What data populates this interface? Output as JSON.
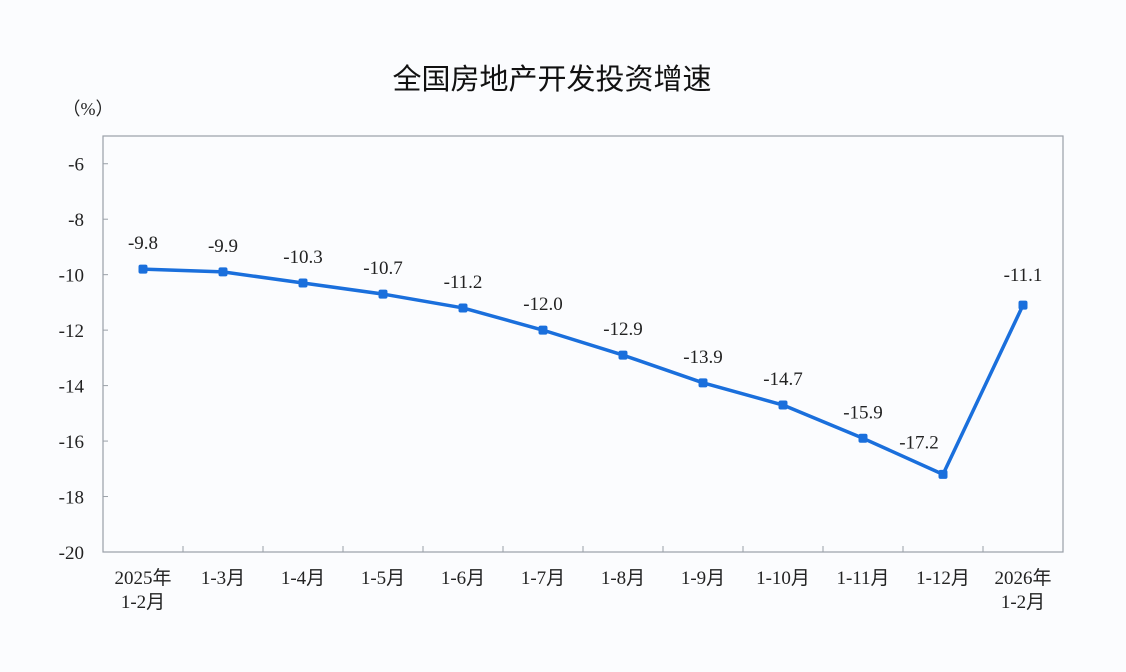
{
  "chart_data": {
    "type": "line",
    "title": "全国房地产开发投资增速",
    "ylabel": "（%）",
    "xlabel": "",
    "categories": [
      [
        "2025年",
        "1-2月"
      ],
      [
        "1-3月"
      ],
      [
        "1-4月"
      ],
      [
        "1-5月"
      ],
      [
        "1-6月"
      ],
      [
        "1-7月"
      ],
      [
        "1-8月"
      ],
      [
        "1-9月"
      ],
      [
        "1-10月"
      ],
      [
        "1-11月"
      ],
      [
        "1-12月"
      ],
      [
        "2026年",
        "1-2月"
      ]
    ],
    "series": [
      {
        "name": "全国房地产开发投资增速",
        "values": [
          -9.8,
          -9.9,
          -10.3,
          -10.7,
          -11.2,
          -12.0,
          -12.9,
          -13.9,
          -14.7,
          -15.9,
          -17.2,
          -11.1
        ],
        "labels": [
          "-9.8",
          "-9.9",
          "-10.3",
          "-10.7",
          "-11.2",
          "-12.0",
          "-12.9",
          "-13.9",
          "-14.7",
          "-15.9",
          "-17.2",
          "-11.1"
        ]
      }
    ],
    "yticks": [
      -6,
      -8,
      -10,
      -12,
      -14,
      -16,
      -18,
      -20
    ],
    "ylim": [
      -20,
      -5
    ],
    "grid": false,
    "legend": "none",
    "colors": {
      "line": "#1a6fdc",
      "axis": "#8a8f98"
    }
  }
}
